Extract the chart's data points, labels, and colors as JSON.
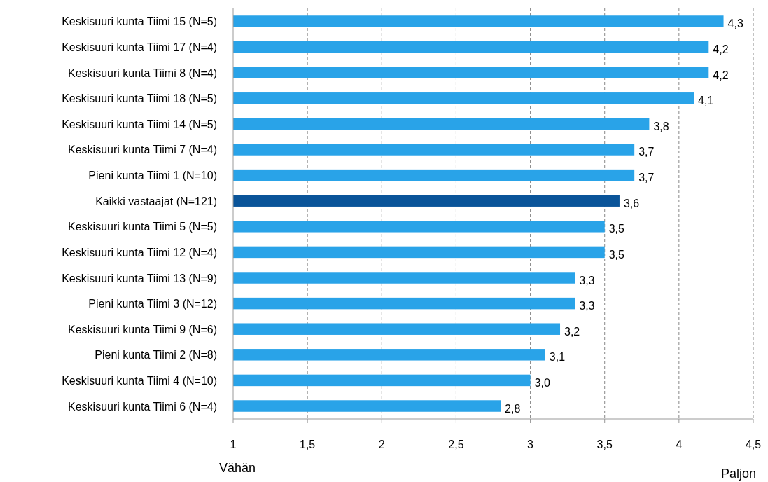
{
  "chart_data": {
    "type": "bar",
    "orientation": "horizontal",
    "categories": [
      "Keskisuuri kunta Tiimi 15 (N=5)",
      "Keskisuuri kunta Tiimi 17 (N=4)",
      "Keskisuuri kunta Tiimi 8 (N=4)",
      "Keskisuuri kunta Tiimi 18 (N=5)",
      "Keskisuuri kunta Tiimi 14  (N=5)",
      "Keskisuuri kunta Tiimi 7 (N=4)",
      "Pieni kunta Tiimi 1 (N=10)",
      "Kaikki vastaajat (N=121)",
      "Keskisuuri kunta Tiimi 5 (N=5)",
      "Keskisuuri kunta Tiimi 12 (N=4)",
      "Keskisuuri kunta Tiimi 13 (N=9)",
      "Pieni kunta Tiimi 3 (N=12)",
      "Keskisuuri kunta Tiimi 9 (N=6)",
      "Pieni kunta Tiimi 2  (N=8)",
      "Keskisuuri kunta Tiimi 4  (N=10)",
      "Keskisuuri kunta Tiimi 6 (N=4)"
    ],
    "values": [
      4.3,
      4.2,
      4.2,
      4.1,
      3.8,
      3.7,
      3.7,
      3.6,
      3.5,
      3.5,
      3.3,
      3.3,
      3.2,
      3.1,
      3.0,
      2.8
    ],
    "value_labels": [
      "4,3",
      "4,2",
      "4,2",
      "4,1",
      "3,8",
      "3,7",
      "3,7",
      "3,6",
      "3,5",
      "3,5",
      "3,3",
      "3,3",
      "3,2",
      "3,1",
      "3,0",
      "2,8"
    ],
    "colors": [
      "#29a3e8",
      "#29a3e8",
      "#29a3e8",
      "#29a3e8",
      "#29a3e8",
      "#29a3e8",
      "#29a3e8",
      "#0a5499",
      "#29a3e8",
      "#29a3e8",
      "#29a3e8",
      "#29a3e8",
      "#29a3e8",
      "#29a3e8",
      "#29a3e8",
      "#29a3e8"
    ],
    "xlim": [
      1,
      4.5
    ],
    "xticks": [
      1,
      {
        "value": 1.5,
        "label": "1,5"
      },
      2,
      {
        "value": 2.5,
        "label": "2,5"
      },
      3,
      {
        "value": 3.5,
        "label": "3,5"
      },
      4,
      {
        "value": 4.5,
        "label": "4,5"
      }
    ],
    "grid": "x",
    "annotations": [
      "Vähän",
      "Paljon"
    ]
  }
}
